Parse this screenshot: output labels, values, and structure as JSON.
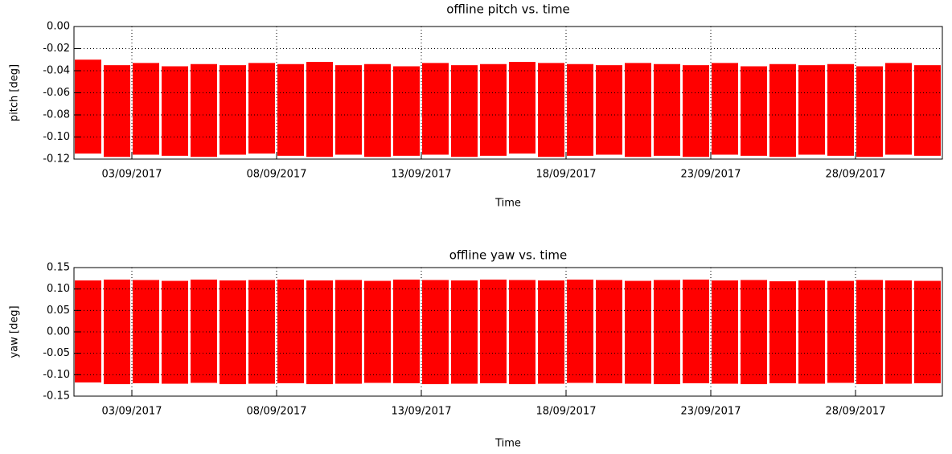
{
  "chart_data": [
    {
      "type": "range",
      "title": "offline pitch vs. time",
      "x_label": "Time",
      "y_label": "pitch [deg]",
      "x": [
        "01/09/2017",
        "02/09/2017",
        "03/09/2017",
        "04/09/2017",
        "05/09/2017",
        "06/09/2017",
        "07/09/2017",
        "08/09/2017",
        "09/09/2017",
        "10/09/2017",
        "11/09/2017",
        "12/09/2017",
        "13/09/2017",
        "14/09/2017",
        "15/09/2017",
        "16/09/2017",
        "17/09/2017",
        "18/09/2017",
        "19/09/2017",
        "20/09/2017",
        "21/09/2017",
        "22/09/2017",
        "23/09/2017",
        "24/09/2017",
        "25/09/2017",
        "26/09/2017",
        "27/09/2017",
        "28/09/2017",
        "29/09/2017",
        "30/09/2017"
      ],
      "series": [
        {
          "name": "high",
          "color": "#ff0000",
          "values": [
            -0.03,
            -0.035,
            -0.033,
            -0.036,
            -0.034,
            -0.035,
            -0.033,
            -0.034,
            -0.032,
            -0.035,
            -0.034,
            -0.036,
            -0.033,
            -0.035,
            -0.034,
            -0.032,
            -0.033,
            -0.034,
            -0.035,
            -0.033,
            -0.034,
            -0.035,
            -0.033,
            -0.036,
            -0.034,
            -0.035,
            -0.034,
            -0.036,
            -0.033,
            -0.035
          ]
        },
        {
          "name": "low",
          "color": "#ff0000",
          "values": [
            -0.115,
            -0.118,
            -0.116,
            -0.117,
            -0.118,
            -0.116,
            -0.115,
            -0.117,
            -0.118,
            -0.116,
            -0.118,
            -0.117,
            -0.116,
            -0.118,
            -0.117,
            -0.115,
            -0.118,
            -0.117,
            -0.116,
            -0.118,
            -0.117,
            -0.118,
            -0.116,
            -0.117,
            -0.118,
            -0.116,
            -0.117,
            -0.118,
            -0.116,
            -0.117
          ]
        }
      ],
      "xlim": [
        "01/09/2017",
        "01/10/2017"
      ],
      "xticks": [
        "03/09/2017",
        "08/09/2017",
        "13/09/2017",
        "18/09/2017",
        "23/09/2017",
        "28/09/2017"
      ],
      "ylim": [
        -0.12,
        0.0
      ],
      "yticks": [
        {
          "value": 0.0,
          "label": "0.00"
        },
        {
          "value": -0.02,
          "label": "-0.02"
        },
        {
          "value": -0.04,
          "label": "-0.04"
        },
        {
          "value": -0.06,
          "label": "-0.06"
        },
        {
          "value": -0.08,
          "label": "-0.08"
        },
        {
          "value": -0.1,
          "label": "-0.10"
        },
        {
          "value": -0.12,
          "label": "-0.12"
        }
      ],
      "grid": true
    },
    {
      "type": "range",
      "title": "offline yaw vs. time",
      "x_label": "Time",
      "y_label": "yaw [deg]",
      "x": [
        "01/09/2017",
        "02/09/2017",
        "03/09/2017",
        "04/09/2017",
        "05/09/2017",
        "06/09/2017",
        "07/09/2017",
        "08/09/2017",
        "09/09/2017",
        "10/09/2017",
        "11/09/2017",
        "12/09/2017",
        "13/09/2017",
        "14/09/2017",
        "15/09/2017",
        "16/09/2017",
        "17/09/2017",
        "18/09/2017",
        "19/09/2017",
        "20/09/2017",
        "21/09/2017",
        "22/09/2017",
        "23/09/2017",
        "24/09/2017",
        "25/09/2017",
        "26/09/2017",
        "27/09/2017",
        "28/09/2017",
        "29/09/2017",
        "30/09/2017"
      ],
      "series": [
        {
          "name": "high",
          "color": "#ff0000",
          "values": [
            0.12,
            0.122,
            0.121,
            0.119,
            0.122,
            0.12,
            0.121,
            0.122,
            0.12,
            0.121,
            0.119,
            0.122,
            0.121,
            0.12,
            0.122,
            0.121,
            0.12,
            0.122,
            0.121,
            0.119,
            0.121,
            0.122,
            0.12,
            0.121,
            0.118,
            0.12,
            0.119,
            0.121,
            0.12,
            0.119
          ]
        },
        {
          "name": "low",
          "color": "#ff0000",
          "values": [
            -0.118,
            -0.122,
            -0.12,
            -0.121,
            -0.119,
            -0.122,
            -0.121,
            -0.12,
            -0.122,
            -0.121,
            -0.119,
            -0.12,
            -0.122,
            -0.121,
            -0.12,
            -0.122,
            -0.121,
            -0.119,
            -0.12,
            -0.121,
            -0.122,
            -0.12,
            -0.121,
            -0.122,
            -0.12,
            -0.121,
            -0.119,
            -0.122,
            -0.121,
            -0.12
          ]
        }
      ],
      "xlim": [
        "01/09/2017",
        "01/10/2017"
      ],
      "xticks": [
        "03/09/2017",
        "08/09/2017",
        "13/09/2017",
        "18/09/2017",
        "23/09/2017",
        "28/09/2017"
      ],
      "ylim": [
        -0.15,
        0.15
      ],
      "yticks": [
        {
          "value": 0.15,
          "label": "0.15"
        },
        {
          "value": 0.1,
          "label": "0.10"
        },
        {
          "value": 0.05,
          "label": "0.05"
        },
        {
          "value": 0.0,
          "label": "0.00"
        },
        {
          "value": -0.05,
          "label": "-0.05"
        },
        {
          "value": -0.1,
          "label": "-0.10"
        },
        {
          "value": -0.15,
          "label": "-0.15"
        }
      ],
      "grid": true
    }
  ]
}
